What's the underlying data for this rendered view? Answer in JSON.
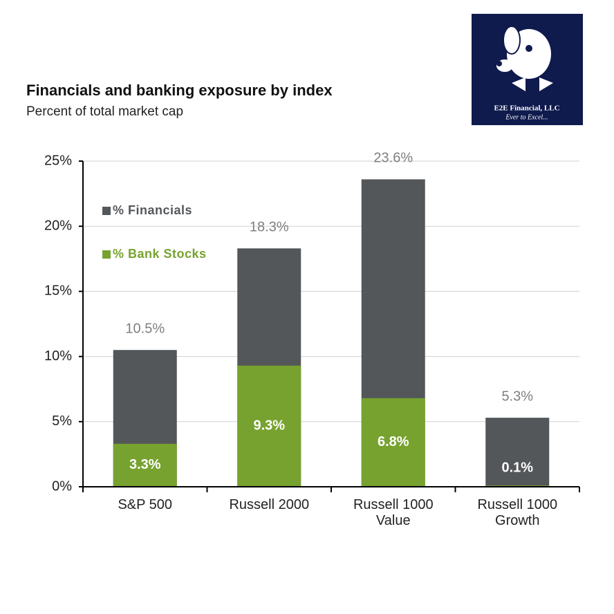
{
  "chart_data": {
    "type": "bar",
    "title": "Financials and banking exposure by index",
    "subtitle": "Percent of total market cap",
    "categories": [
      "S&P 500",
      "Russell 2000",
      "Russell 1000 Value",
      "Russell 1000 Growth"
    ],
    "series": [
      {
        "name": "% Financials",
        "color": "#54575a",
        "values": [
          10.5,
          18.3,
          23.6,
          5.3
        ],
        "value_labels": [
          "10.5%",
          "18.3%",
          "23.6%",
          "5.3%"
        ]
      },
      {
        "name": "% Bank Stocks",
        "color": "#77a22f",
        "values": [
          3.3,
          9.3,
          6.8,
          0.1
        ],
        "value_labels": [
          "3.3%",
          "9.3%",
          "6.8%",
          "0.1%"
        ]
      }
    ],
    "ylim": [
      0,
      25
    ],
    "yticks": [
      {
        "value": 0,
        "label": "0%"
      },
      {
        "value": 5,
        "label": "5%"
      },
      {
        "value": 10,
        "label": "10%"
      },
      {
        "value": 15,
        "label": "15%"
      },
      {
        "value": 20,
        "label": "20%"
      },
      {
        "value": 25,
        "label": "25%"
      }
    ],
    "grid": true,
    "legend": "upper-left"
  },
  "logo": {
    "name": "E2E Financial, LLC",
    "tagline": "Ever to Excel..."
  }
}
